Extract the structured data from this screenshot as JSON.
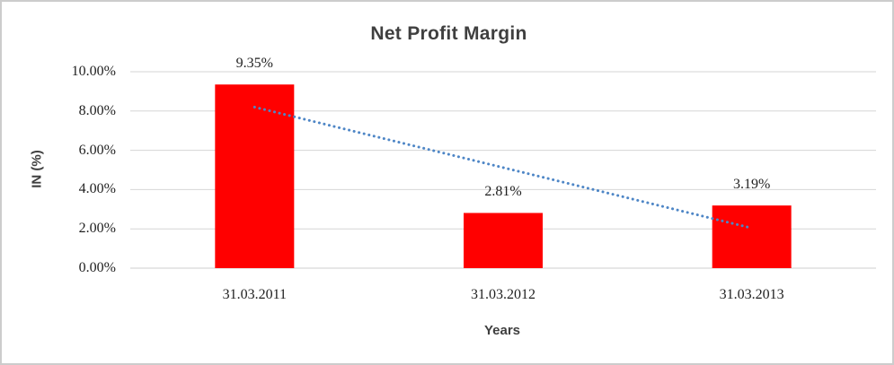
{
  "window": {
    "background_color": "#ffffff",
    "border_color": "#cccccc"
  },
  "chart_data": {
    "type": "bar",
    "title": "Net Profit Margin",
    "xlabel": "Years",
    "ylabel": "IN (%)",
    "categories": [
      "31.03.2011",
      "31.03.2012",
      "31.03.2013"
    ],
    "values": [
      9.35,
      2.81,
      3.19
    ],
    "value_labels": [
      "9.35%",
      "2.81%",
      "3.19%"
    ],
    "ylim": [
      0,
      10
    ],
    "ytick_step": 2,
    "ytick_labels": [
      "0.00%",
      "2.00%",
      "4.00%",
      "6.00%",
      "8.00%",
      "10.00%"
    ],
    "grid": true,
    "legend_position": "none",
    "bar_color": "#ff0000",
    "gridline_color": "#d6d6d6",
    "axis_line_color": "#cfcfcf",
    "title_color": "#3f3f3f",
    "tick_label_color": "#1f1f1f",
    "trendline": {
      "type": "linear",
      "style": "dotted",
      "color": "#4e86c6",
      "start_value": 8.2,
      "end_value": 2.04
    }
  }
}
